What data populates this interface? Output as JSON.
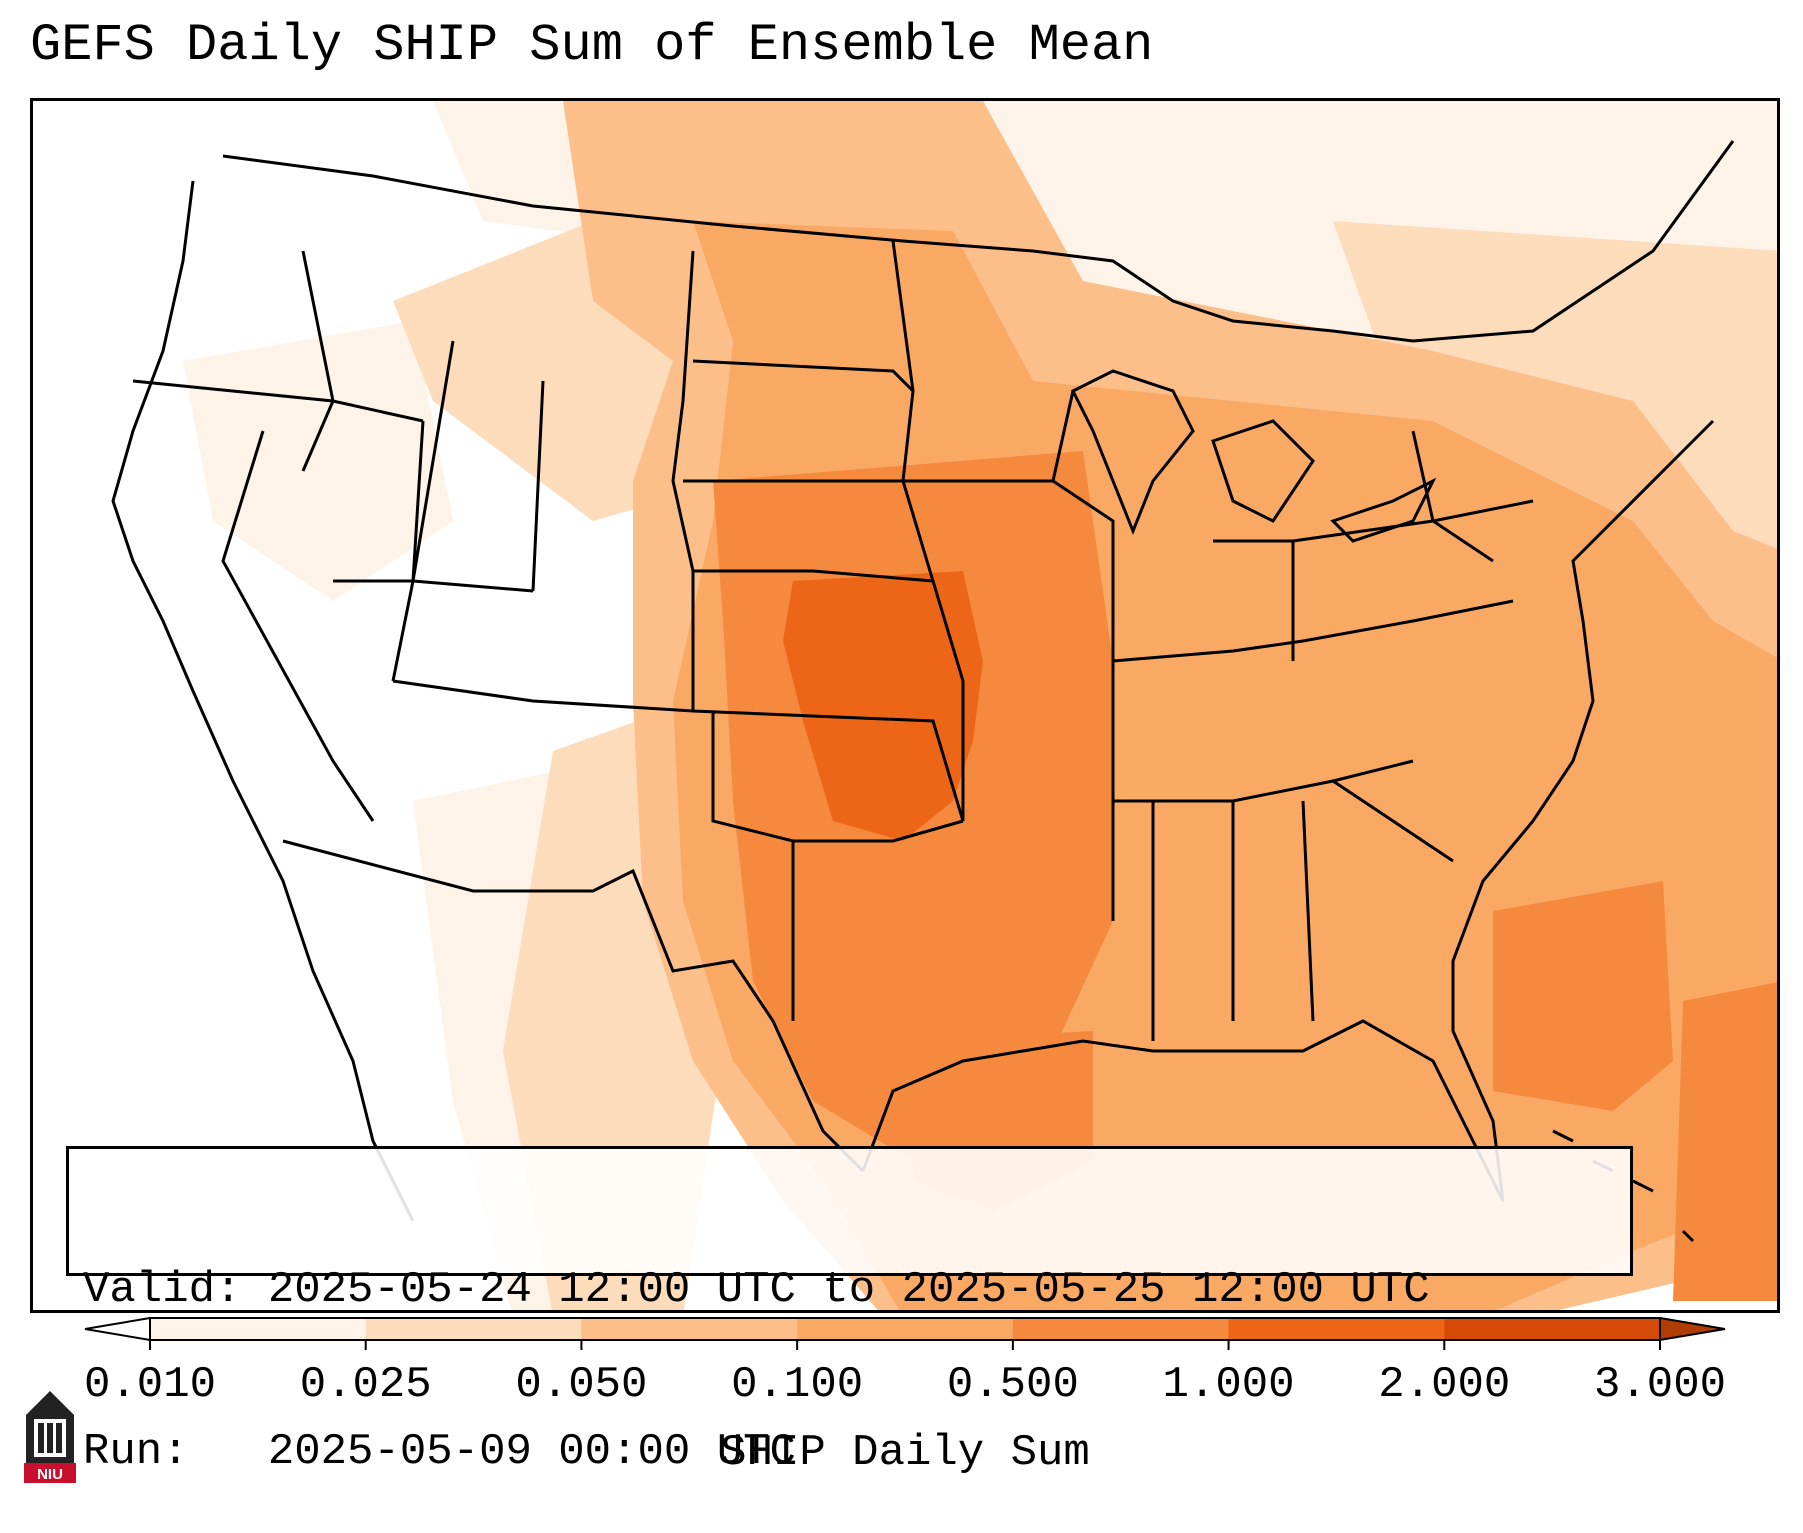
{
  "title": "GEFS Daily SHIP Sum of Ensemble Mean",
  "info": {
    "valid_line": "Valid: 2025-05-24 12:00 UTC to 2025-05-25 12:00 UTC",
    "run_line": "Run:   2025-05-09 00:00 UTC"
  },
  "colorbar": {
    "label": "SHIP Daily Sum",
    "ticks": [
      "0.010",
      "0.025",
      "0.050",
      "0.100",
      "0.500",
      "1.000",
      "2.000",
      "3.000"
    ],
    "colors": [
      "#fef3e8",
      "#fddcbc",
      "#fcbf89",
      "#faa965",
      "#f58a3f",
      "#ed6618",
      "#d54a06"
    ],
    "under_color": "#ffffff",
    "over_color": "#b03d04"
  },
  "logo_text": "NIU",
  "map": {
    "region": "Contiguous United States",
    "max_area": "Kansas / Oklahoma",
    "colors": {
      "none": "#ffffff",
      "very_low": "#fef3e8",
      "low": "#fddcbc",
      "mid_low": "#fcbf89",
      "mid": "#faa965",
      "mid_high": "#f58a3f",
      "high": "#ed6618",
      "border": "#000000"
    }
  }
}
